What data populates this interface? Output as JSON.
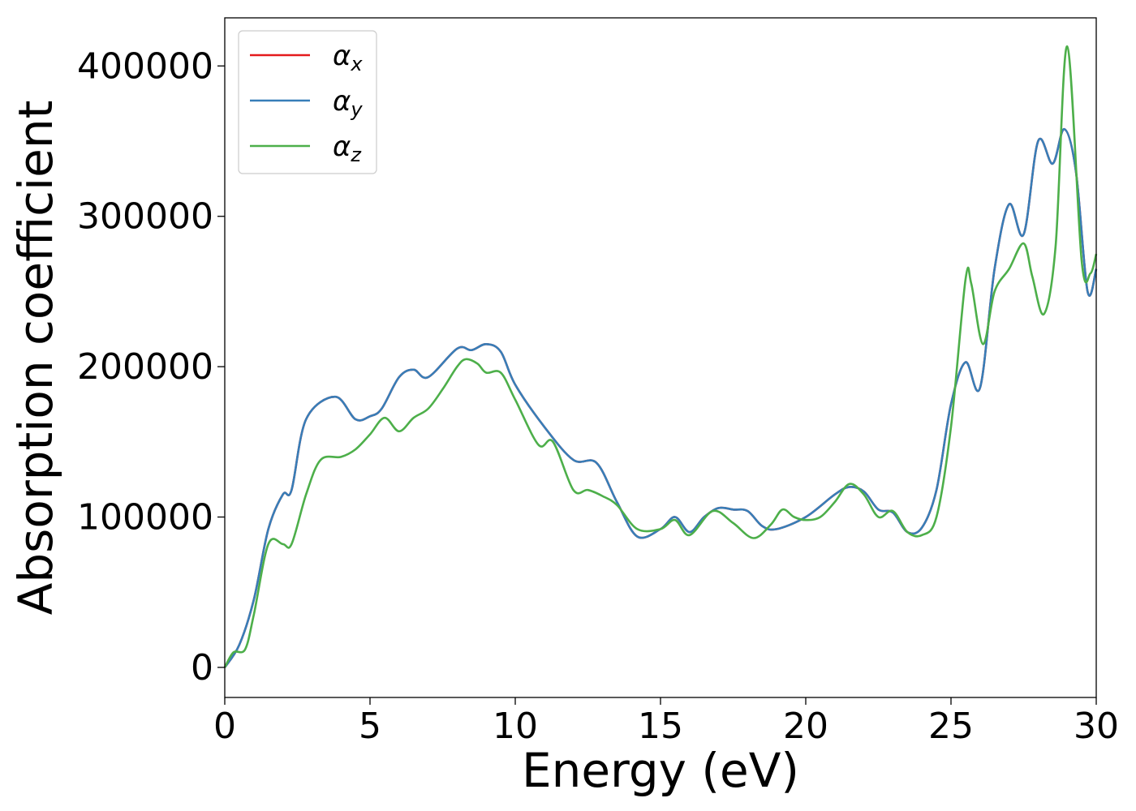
{
  "chart_data": {
    "type": "line",
    "title": "",
    "xlabel": "Energy (eV)",
    "ylabel": "Absorption coefficient",
    "xlim": [
      0,
      30
    ],
    "ylim": [
      -20000,
      432000
    ],
    "xticks": [
      0,
      5,
      10,
      15,
      20,
      25,
      30
    ],
    "yticks": [
      0,
      100000,
      200000,
      300000,
      400000
    ],
    "grid": false,
    "legend_position": "top-left",
    "colors": {
      "x": "#e41a1c",
      "y": "#377eb8",
      "z": "#4daf4a"
    },
    "series": [
      {
        "name": "α_x",
        "base": "α",
        "sub": "x",
        "key": "x",
        "x": [
          0,
          0.5,
          1,
          1.5,
          2,
          2.3,
          2.8,
          3.8,
          4.5,
          5,
          5.4,
          6,
          6.5,
          7,
          8,
          8.5,
          9,
          9.5,
          10,
          11,
          12,
          12.8,
          13.5,
          14.2,
          15,
          15.5,
          16,
          16.5,
          17,
          17.5,
          18,
          18.5,
          19,
          20,
          21,
          21.5,
          22,
          22.5,
          23,
          23.5,
          24,
          24.5,
          25,
          25.5,
          26,
          26.5,
          27,
          27.5,
          28,
          28.5,
          28.9,
          29.3,
          29.7,
          30
        ],
        "values": [
          0,
          15000,
          45000,
          92000,
          115000,
          118000,
          165000,
          180000,
          165000,
          167000,
          172000,
          193000,
          198000,
          193000,
          212000,
          211000,
          215000,
          210000,
          188000,
          160000,
          138000,
          136000,
          110000,
          87000,
          92000,
          100000,
          90000,
          100000,
          106000,
          105000,
          104000,
          94000,
          92000,
          100000,
          115000,
          120000,
          117000,
          105000,
          103000,
          90000,
          93000,
          118000,
          175000,
          203000,
          186000,
          265000,
          308000,
          288000,
          350000,
          335000,
          358000,
          330000,
          250000,
          265000
        ]
      },
      {
        "name": "α_y",
        "base": "α",
        "sub": "y",
        "key": "y",
        "x": [
          0,
          0.5,
          1,
          1.5,
          2,
          2.3,
          2.8,
          3.8,
          4.5,
          5,
          5.4,
          6,
          6.5,
          7,
          8,
          8.5,
          9,
          9.5,
          10,
          11,
          12,
          12.8,
          13.5,
          14.2,
          15,
          15.5,
          16,
          16.5,
          17,
          17.5,
          18,
          18.5,
          19,
          20,
          21,
          21.5,
          22,
          22.5,
          23,
          23.5,
          24,
          24.5,
          25,
          25.5,
          26,
          26.5,
          27,
          27.5,
          28,
          28.5,
          28.9,
          29.3,
          29.7,
          30
        ],
        "values": [
          0,
          15000,
          45000,
          92000,
          115000,
          118000,
          165000,
          180000,
          165000,
          167000,
          172000,
          193000,
          198000,
          193000,
          212000,
          211000,
          215000,
          210000,
          188000,
          160000,
          138000,
          136000,
          110000,
          87000,
          92000,
          100000,
          90000,
          100000,
          106000,
          105000,
          104000,
          94000,
          92000,
          100000,
          115000,
          120000,
          117000,
          105000,
          103000,
          90000,
          93000,
          118000,
          175000,
          203000,
          186000,
          265000,
          308000,
          288000,
          350000,
          335000,
          358000,
          330000,
          250000,
          265000
        ]
      },
      {
        "name": "α_z",
        "base": "α",
        "sub": "z",
        "key": "z",
        "x": [
          0,
          0.3,
          0.7,
          1,
          1.5,
          2,
          2.3,
          2.8,
          3.3,
          4,
          4.5,
          5,
          5.5,
          6,
          6.5,
          7,
          7.5,
          8,
          8.3,
          8.7,
          9,
          9.5,
          10,
          10.8,
          11.3,
          12,
          12.5,
          13,
          13.5,
          14.2,
          15,
          15.5,
          16,
          16.8,
          17.5,
          18.2,
          18.8,
          19.2,
          19.6,
          20,
          20.5,
          21,
          21.5,
          22,
          22.5,
          23,
          23.5,
          24,
          24.5,
          25,
          25.5,
          25.7,
          26.1,
          26.5,
          27,
          27.5,
          27.8,
          28.2,
          28.6,
          29,
          29.5,
          29.8,
          30
        ],
        "values": [
          0,
          10000,
          12000,
          35000,
          82000,
          82000,
          82000,
          115000,
          138000,
          140000,
          145000,
          155000,
          166000,
          157000,
          166000,
          172000,
          185000,
          200000,
          205000,
          202000,
          196000,
          196000,
          178000,
          148000,
          150000,
          118000,
          118000,
          114000,
          108000,
          92000,
          92000,
          98000,
          88000,
          104000,
          96000,
          86000,
          95000,
          105000,
          100000,
          98000,
          100000,
          110000,
          122000,
          115000,
          100000,
          104000,
          90000,
          88000,
          100000,
          160000,
          258000,
          255000,
          215000,
          250000,
          265000,
          282000,
          260000,
          235000,
          280000,
          413000,
          270000,
          262000,
          275000
        ]
      }
    ]
  }
}
